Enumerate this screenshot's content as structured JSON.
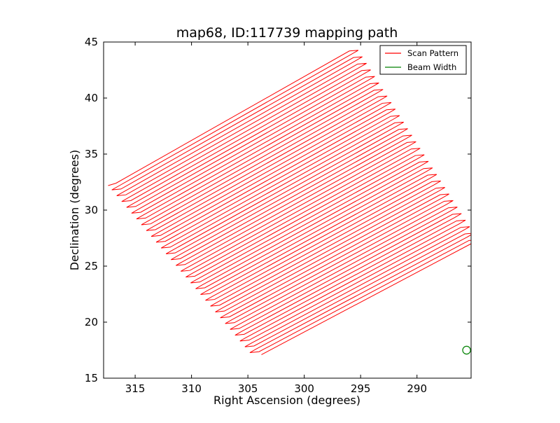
{
  "chart_data": {
    "type": "line",
    "title": "map68, ID:117739 mapping path",
    "xlabel": "Right Ascension (degrees)",
    "ylabel": "Declination (degrees)",
    "xlim": [
      317.8,
      285.2
    ],
    "ylim": [
      15,
      45
    ],
    "x_ticks": [
      315,
      310,
      305,
      300,
      295,
      290
    ],
    "x_tick_labels": [
      "315",
      "310",
      "305",
      "300",
      "295",
      "290"
    ],
    "y_ticks": [
      15,
      20,
      25,
      30,
      35,
      40,
      45
    ],
    "y_tick_labels": [
      "15",
      "20",
      "25",
      "30",
      "35",
      "40",
      "45"
    ],
    "x_axis_inverted": true,
    "grid": false,
    "legend_position": "top-right",
    "legend": [
      {
        "label": "Scan Pattern",
        "color": "#ff0000"
      },
      {
        "label": "Beam Width",
        "color": "#008000"
      }
    ],
    "series": [
      {
        "name": "Scan Pattern",
        "color": "#ff0000",
        "kind": "raster scan",
        "scan_count": 60,
        "corners": {
          "upper_left": [
            316.7,
            32.4
          ],
          "upper_right": [
            296.0,
            44.2
          ],
          "lower_right": [
            285.2,
            27.0
          ],
          "lower_left": [
            303.8,
            17.1
          ]
        },
        "turnaround_overshoot_deg": 0.7
      },
      {
        "name": "Beam Width",
        "color": "#008000",
        "kind": "circle",
        "center": [
          285.6,
          17.5
        ],
        "radius_deg": 0.35
      }
    ]
  }
}
